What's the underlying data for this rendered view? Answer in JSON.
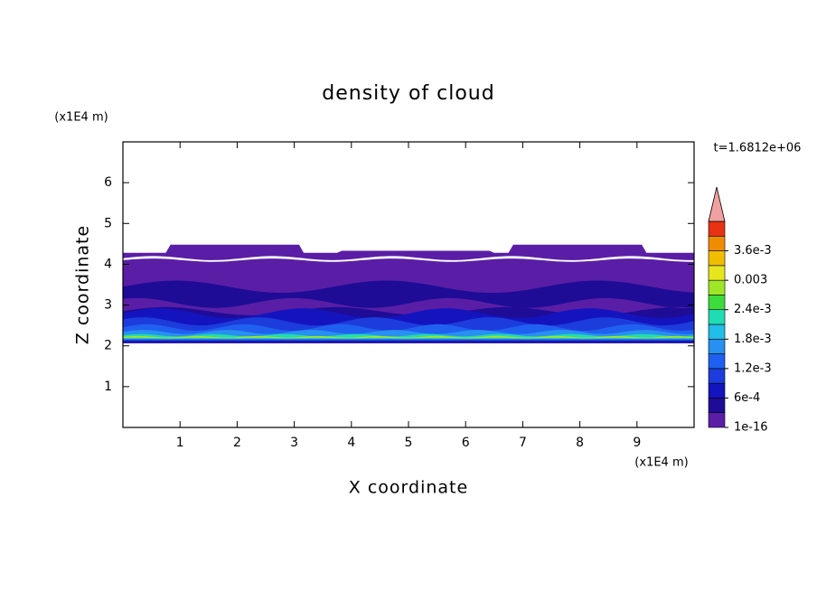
{
  "chart_data": {
    "type": "contour",
    "title": "density of cloud",
    "x_label": "X coordinate",
    "y_label": "Z coordinate",
    "x_unit": "(x1E4 m)",
    "y_unit": "(x1E4 m)",
    "annotation": "t=1.6812e+06",
    "xlim": [
      0,
      10
    ],
    "xticks": [
      1,
      2,
      3,
      4,
      5,
      6,
      7,
      8,
      9
    ],
    "ylim": [
      0,
      7
    ],
    "yticks": [
      1,
      2,
      3,
      4,
      5,
      6
    ],
    "colorbar": {
      "lim": [
        0,
        0.0042
      ],
      "ticks": [
        {
          "value": 1e-16,
          "label": "1e-16"
        },
        {
          "value": 0.0006,
          "label": "6e-4"
        },
        {
          "value": 0.0012,
          "label": "1.2e-3"
        },
        {
          "value": 0.0018,
          "label": "1.8e-3"
        },
        {
          "value": 0.0024,
          "label": "2.4e-3"
        },
        0.003,
        {
          "value": 0.0036,
          "label": "3.6e-3"
        }
      ],
      "colors": [
        "#5a1ea6",
        "#1e0c96",
        "#1414be",
        "#1c3cdc",
        "#2060f0",
        "#2890f0",
        "#20bee8",
        "#20dcb4",
        "#3cdc3c",
        "#a0e628",
        "#e6e61e",
        "#f0be00",
        "#f08c00",
        "#e83214"
      ],
      "extend_color": "#f0a0a0"
    }
  }
}
